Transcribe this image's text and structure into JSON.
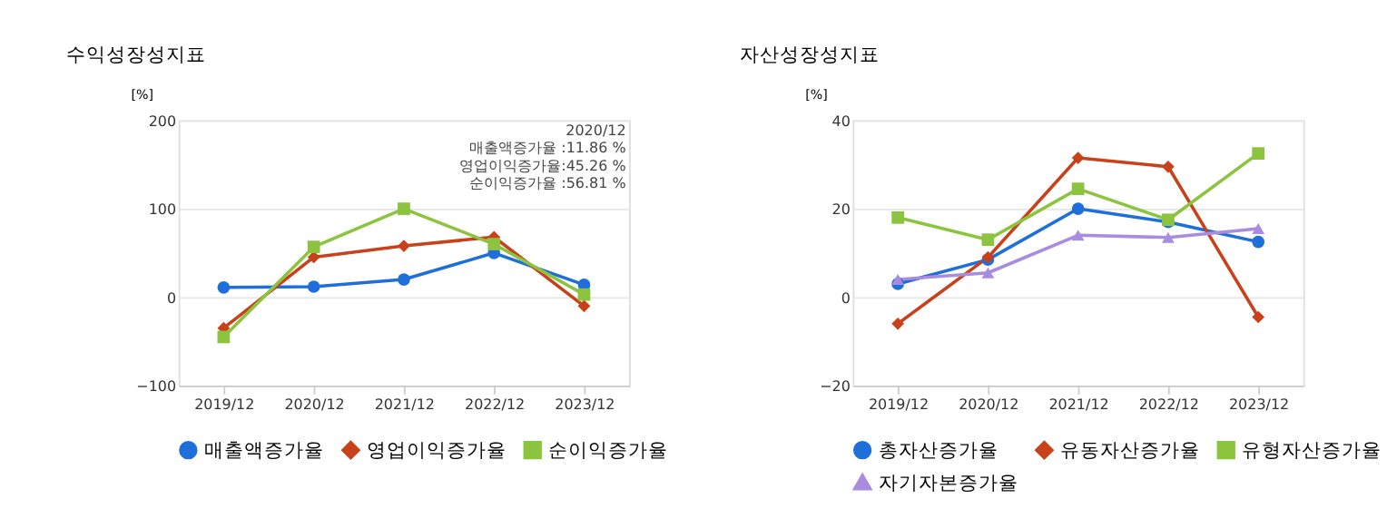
{
  "chart_data": [
    {
      "type": "line",
      "title": "수익성장성지표",
      "ylabel": "[%]",
      "categories": [
        "2019/12",
        "2020/12",
        "2021/12",
        "2022/12",
        "2023/12"
      ],
      "ylim": [
        -100,
        200
      ],
      "yticks": [
        -100,
        0,
        100,
        200
      ],
      "grid": "y",
      "legend": "bottom",
      "series": [
        {
          "name": "매출액증가율",
          "color": "#1e6fd9",
          "marker": "circle",
          "values": [
            11,
            11.86,
            20,
            50,
            14
          ]
        },
        {
          "name": "영업이익증가율",
          "color": "#c9411b",
          "marker": "diamond",
          "values": [
            -35,
            45.26,
            58,
            68,
            -10
          ]
        },
        {
          "name": "순이익증가율",
          "color": "#8cc43f",
          "marker": "square",
          "values": [
            -45,
            56.81,
            100,
            60,
            3
          ]
        }
      ],
      "annotations": [
        "2020/12",
        "매출액증가율 :11.86 %",
        "영업이익증가율:45.26 %",
        "순이익증가율 :56.81 %"
      ]
    },
    {
      "type": "line",
      "title": "자산성장성지표",
      "ylabel": "[%]",
      "categories": [
        "2019/12",
        "2020/12",
        "2021/12",
        "2022/12",
        "2023/12"
      ],
      "ylim": [
        -20,
        40
      ],
      "yticks": [
        -20,
        0,
        20,
        40
      ],
      "grid": "y",
      "legend": "bottom",
      "series": [
        {
          "name": "총자산증가율",
          "color": "#1e6fd9",
          "marker": "circle",
          "values": [
            3,
            8.5,
            20,
            17,
            12.5
          ]
        },
        {
          "name": "유동자산증가율",
          "color": "#c9411b",
          "marker": "diamond",
          "values": [
            -6,
            9,
            31.5,
            29.5,
            -4.5
          ]
        },
        {
          "name": "유형자산증가율",
          "color": "#8cc43f",
          "marker": "square",
          "values": [
            18,
            13,
            24.5,
            17.5,
            32.5
          ]
        },
        {
          "name": "자기자본증가율",
          "color": "#a98be0",
          "marker": "triangle",
          "values": [
            4,
            5.5,
            14,
            13.5,
            15.5
          ]
        }
      ]
    }
  ]
}
